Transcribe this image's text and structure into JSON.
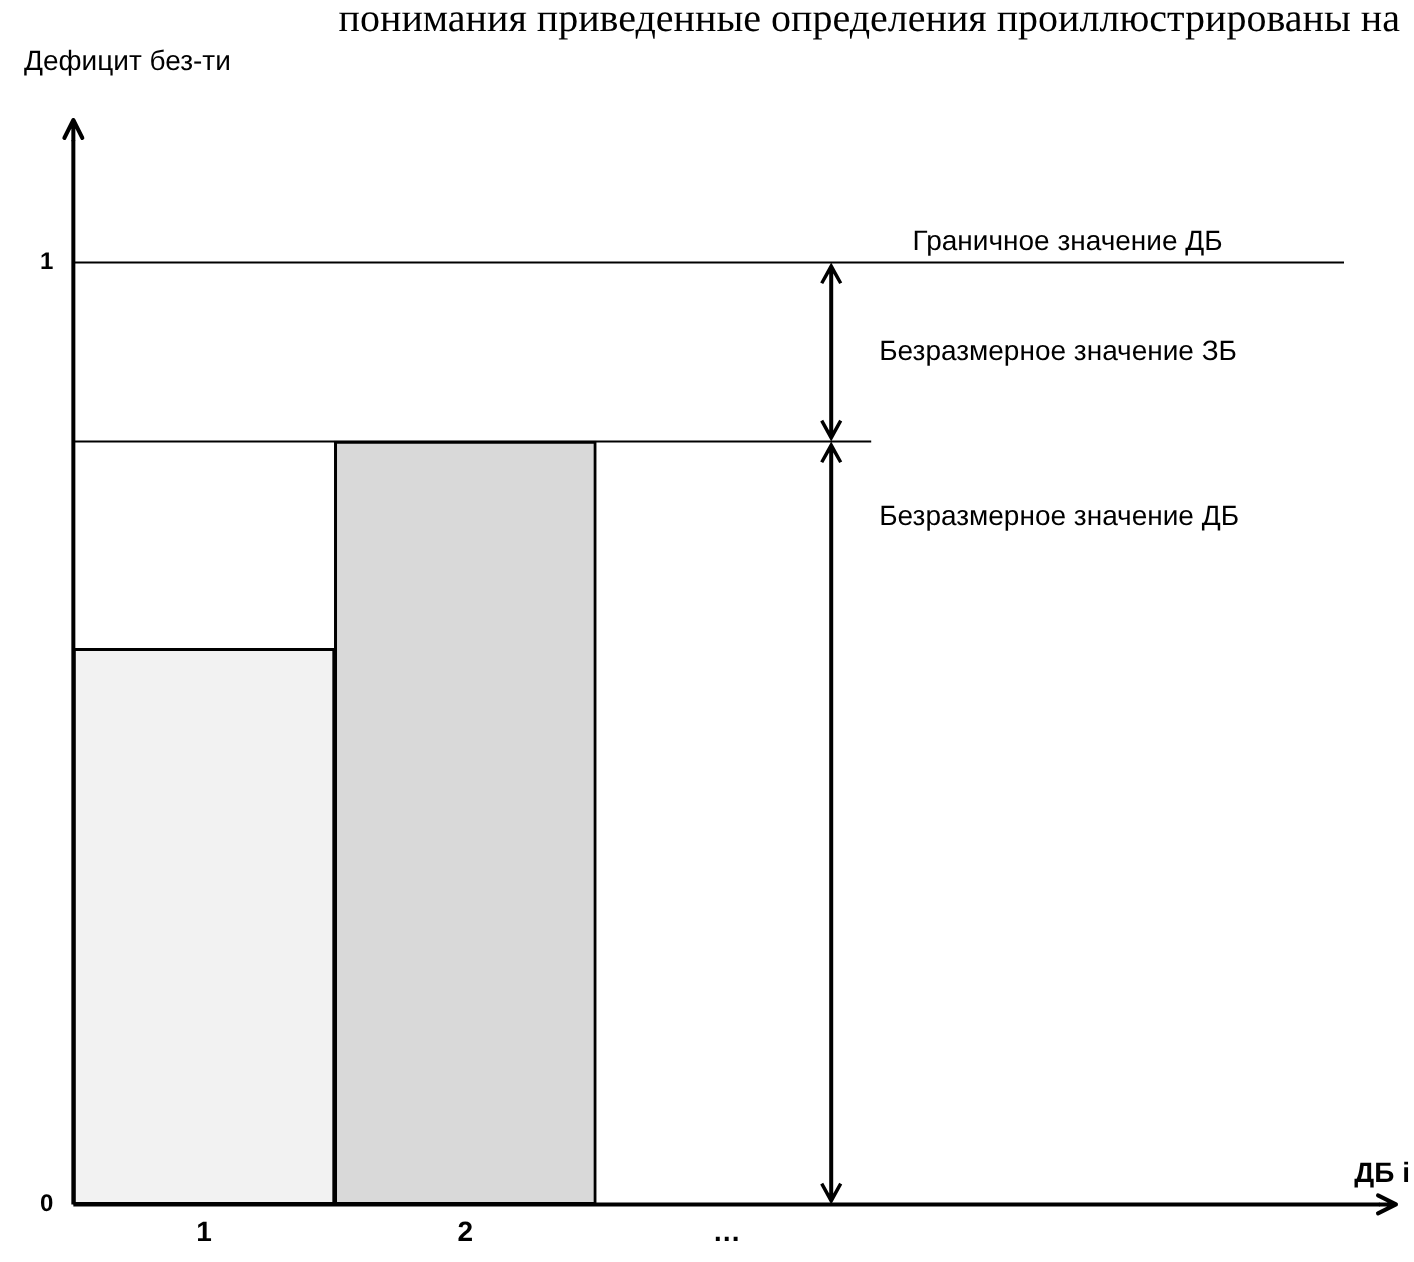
{
  "chart_data": {
    "type": "bar",
    "ylabel": "Дефицит без-ти",
    "xlabel": "ДБ i",
    "categories": [
      "1",
      "2",
      "…",
      null,
      null
    ],
    "values": [
      0.59,
      0.81,
      null,
      null,
      null
    ],
    "colors": [
      "#f2f2f2",
      "#d9d9d9",
      null,
      null,
      null
    ],
    "ylim": [
      0,
      1.13
    ],
    "yticks": [
      0,
      1
    ],
    "grid": false,
    "legend": false,
    "ref_lines": [
      {
        "axis": "y",
        "value": 1,
        "label": "Граничное значение ДБ"
      },
      {
        "axis": "y",
        "value": 0.81
      }
    ],
    "annotations": [
      "понимания приведенные определения проиллюстрированы на",
      "Безразмерное значение ЗБ",
      "Безразмерное значение ДБ"
    ]
  }
}
